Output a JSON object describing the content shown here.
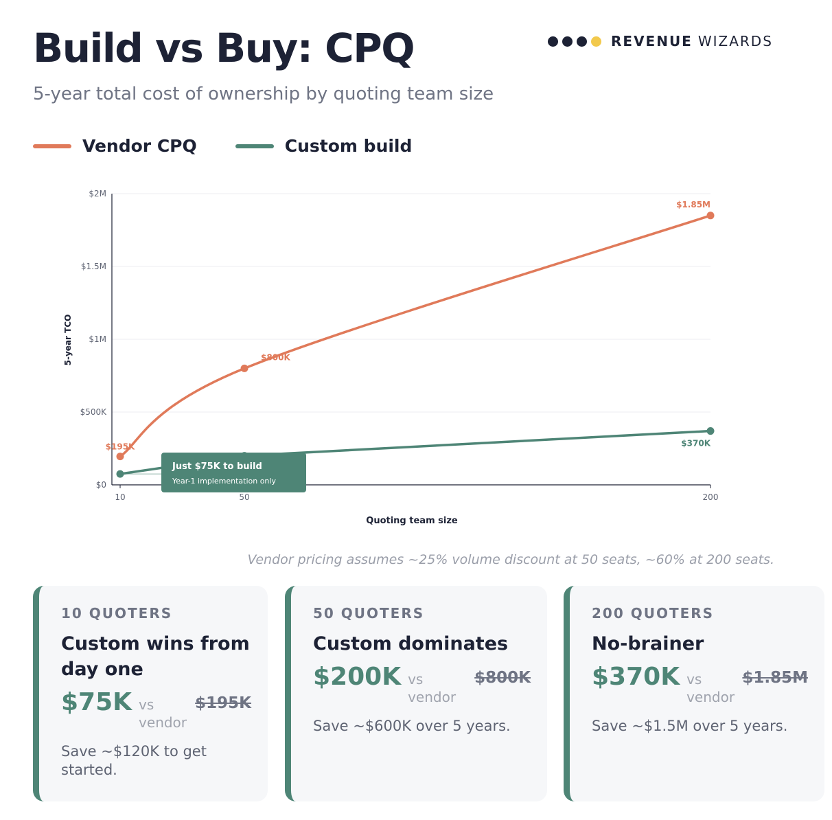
{
  "header": {
    "title": "Build vs Buy: CPQ",
    "subtitle": "5-year total cost of ownership by quoting team size",
    "brand_bold": "REVENUE",
    "brand_light": "WIZARDS",
    "brand_dot_colors": [
      "#1d2235",
      "#1d2235",
      "#1d2235",
      "#f2c94c"
    ]
  },
  "legend": [
    {
      "label": "Vendor CPQ",
      "color": "#e07a5a"
    },
    {
      "label": "Custom build",
      "color": "#4e8576"
    }
  ],
  "chart_data": {
    "type": "line",
    "xlabel": "Quoting team size",
    "ylabel": "5-year TCO",
    "xlim": [
      10,
      200
    ],
    "ylim": [
      0,
      2000000
    ],
    "x_ticks": [
      10,
      50,
      200
    ],
    "x_tick_labels": [
      "10",
      "50",
      "200"
    ],
    "y_ticks": [
      0,
      500000,
      1000000,
      1500000,
      2000000
    ],
    "y_tick_labels": [
      "$0",
      "$500K",
      "$1M",
      "$1.5M",
      "$2M"
    ],
    "grid": true,
    "series": [
      {
        "name": "Vendor CPQ",
        "color": "#e07a5a",
        "x": [
          10,
          50,
          200
        ],
        "y": [
          195000,
          800000,
          1850000
        ],
        "labels": [
          "$195K",
          "$800K",
          "$1.85M"
        ]
      },
      {
        "name": "Custom build",
        "color": "#4e8576",
        "x": [
          10,
          50,
          200
        ],
        "y": [
          75000,
          200000,
          370000
        ],
        "labels": [
          "",
          "",
          "$370K"
        ]
      }
    ],
    "annotation": {
      "title": "Just $75K to build",
      "text": "Year-1 implementation only"
    }
  },
  "footnote": "Vendor pricing assumes ~25% volume discount at 50 seats, ~60% at 200 seats.",
  "cards": [
    {
      "eyebrow": "10 QUOTERS",
      "headline": "Custom wins from day one",
      "price": "$75K",
      "vs": "vs vendor",
      "old_price": "$195K",
      "save": "Save ~$120K to get started."
    },
    {
      "eyebrow": "50 QUOTERS",
      "headline": "Custom dominates",
      "price": "$200K",
      "vs": "vs vendor",
      "old_price": "$800K",
      "save": "Save ~$600K over 5 years."
    },
    {
      "eyebrow": "200 QUOTERS",
      "headline": "No-brainer",
      "price": "$370K",
      "vs": "vs vendor",
      "old_price": "$1.85M",
      "save": "Save ~$1.5M over 5 years."
    }
  ]
}
